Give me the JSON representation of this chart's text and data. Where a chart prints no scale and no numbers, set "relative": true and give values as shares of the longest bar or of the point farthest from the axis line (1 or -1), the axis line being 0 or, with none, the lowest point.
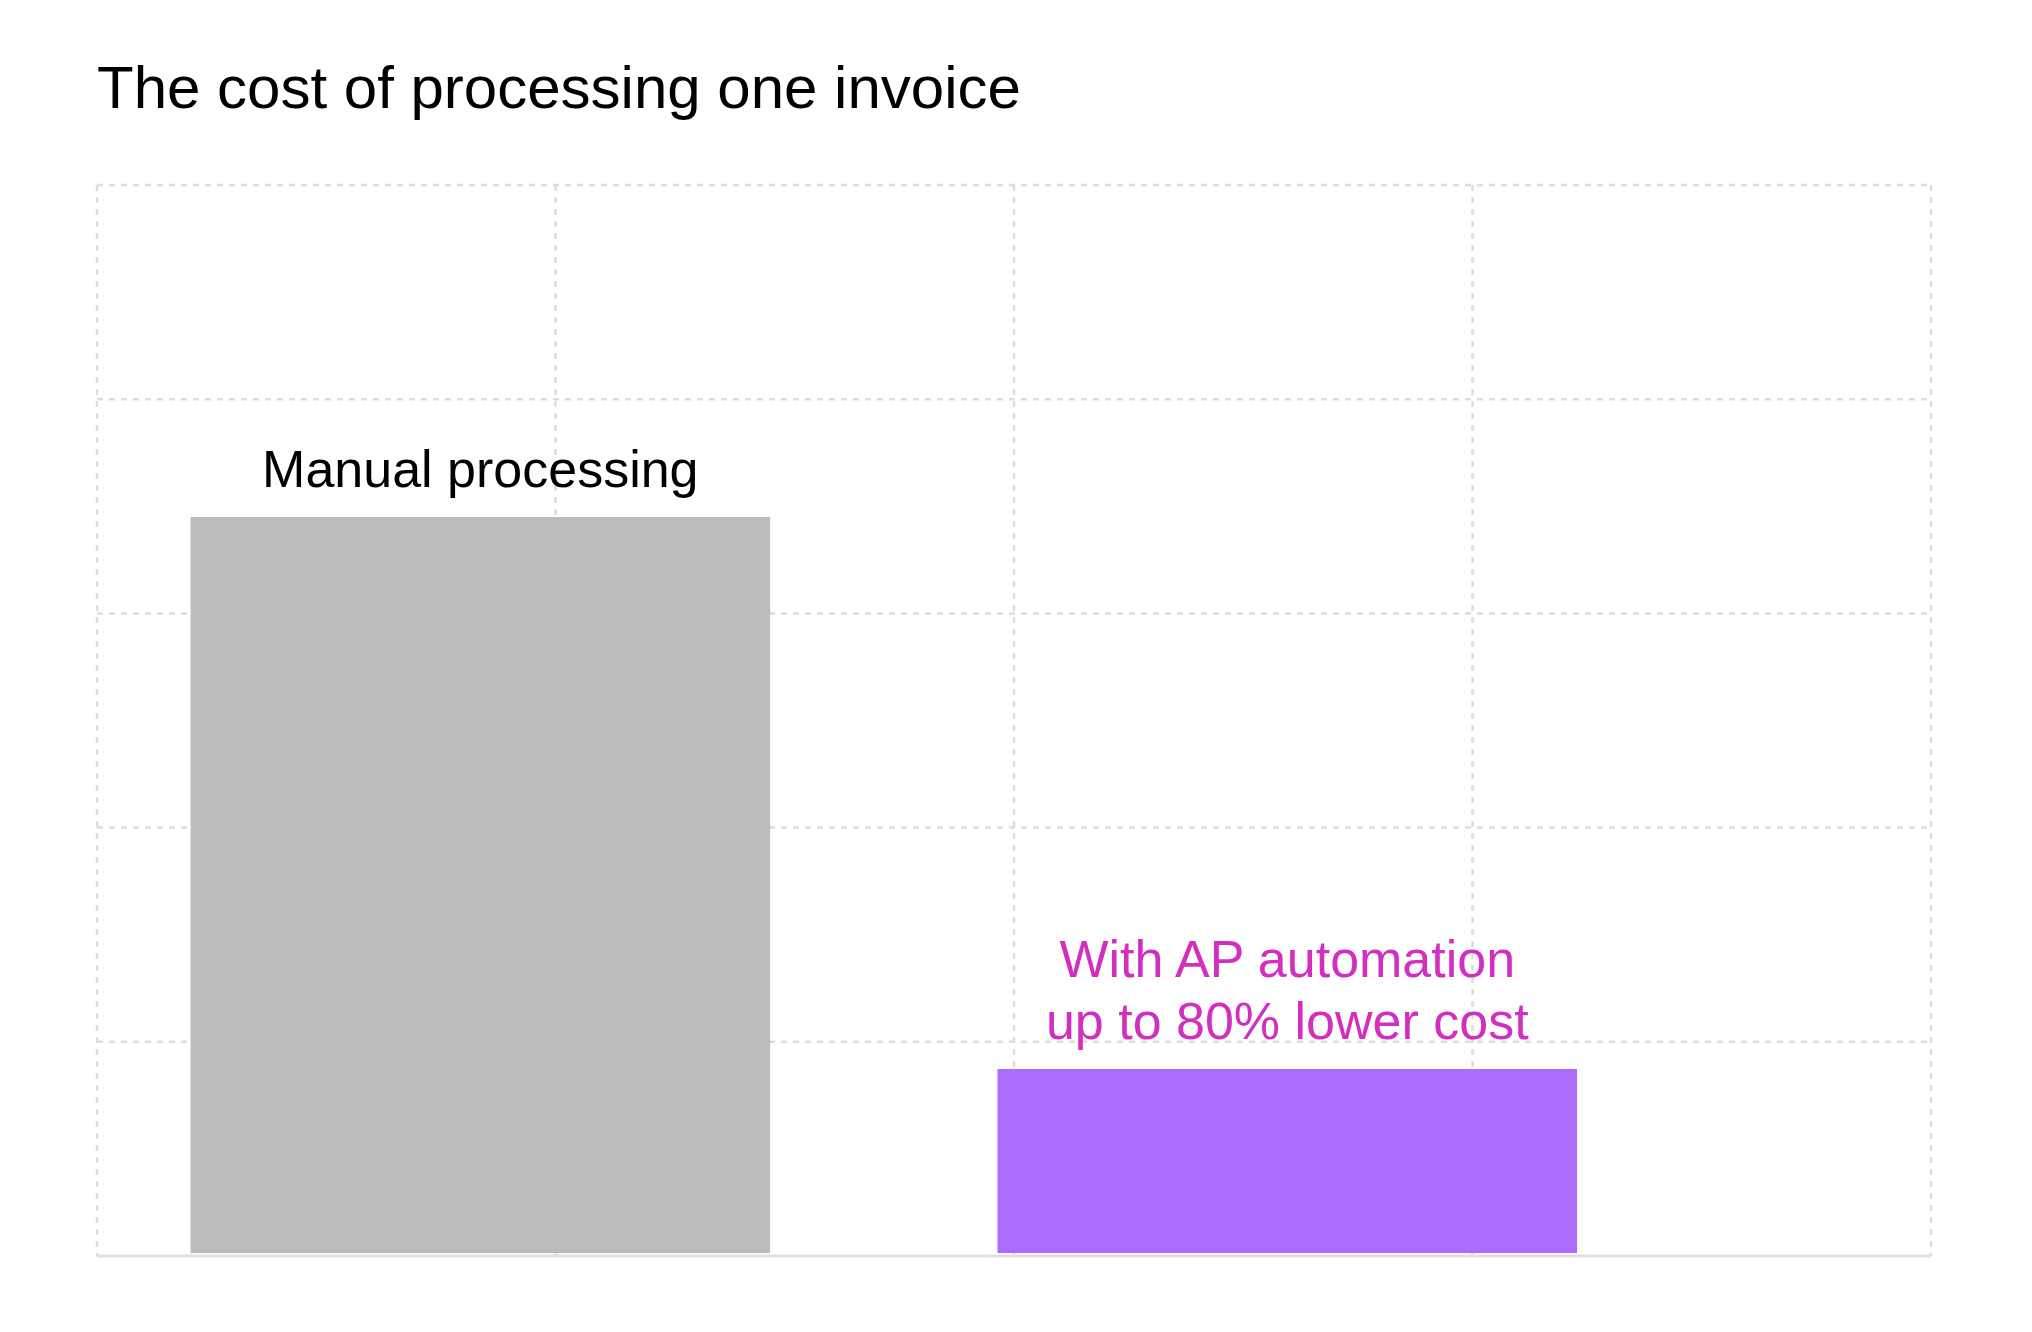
{
  "chart_data": {
    "type": "bar",
    "title": "The cost of processing one invoice",
    "categories": [
      "Manual processing",
      "With AP automation"
    ],
    "values": [
      1,
      0.25
    ],
    "colors": [
      "#bcbcbc",
      "#ac6dff"
    ],
    "relative": true,
    "grid": true,
    "annotations": [
      "up to 80% lower cost"
    ]
  }
}
